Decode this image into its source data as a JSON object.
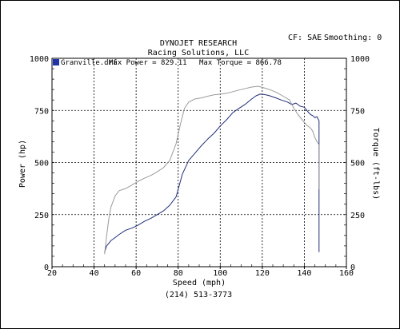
{
  "header": {
    "title": "DYNOJET RESEARCH",
    "subtitle": "Racing Solutions, LLC",
    "cf_label": "CF: SAE",
    "smoothing_label": "Smoothing: 0",
    "phone": "(214) 513-3773"
  },
  "legend": {
    "file": "Granville.drf",
    "max_power_label": "Max Power = 829.11",
    "max_torque_label": "Max Torque = 866.78",
    "swatch_color": "#2233aa"
  },
  "chart_data": {
    "type": "line",
    "xlabel": "Speed (mph)",
    "ylabel_left": "Power (hp)",
    "ylabel_right": "Torque (ft-lbs)",
    "xlim": [
      20,
      160
    ],
    "ylim": [
      0,
      1000
    ],
    "x_ticks": [
      "20",
      "40",
      "60",
      "80",
      "100",
      "120",
      "140",
      "160"
    ],
    "y_ticks_left": [
      "0",
      "250",
      "500",
      "750",
      "1000"
    ],
    "y_ticks_right": [
      "0",
      "250",
      "500",
      "750",
      "1000"
    ],
    "grid": true,
    "series": [
      {
        "name": "Max Power",
        "color": "#1f2c7a",
        "x": [
          45,
          46,
          48,
          50,
          52,
          55,
          58,
          61,
          64,
          67,
          70,
          73,
          76,
          79,
          82,
          85,
          88,
          91,
          94,
          97,
          100,
          103,
          106,
          109,
          112,
          115,
          117,
          119,
          121,
          123,
          126,
          129,
          132,
          134,
          136,
          138,
          140,
          142,
          143,
          144,
          145,
          146,
          147,
          147
        ],
        "y": [
          70,
          100,
          125,
          140,
          155,
          175,
          185,
          200,
          218,
          232,
          250,
          268,
          295,
          335,
          445,
          510,
          545,
          580,
          612,
          640,
          675,
          705,
          740,
          760,
          780,
          805,
          820,
          828,
          826,
          822,
          812,
          800,
          790,
          778,
          785,
          770,
          765,
          740,
          730,
          725,
          715,
          720,
          700,
          70
        ]
      },
      {
        "name": "Max Torque",
        "color": "#9a9a9a",
        "x": [
          45,
          46,
          47,
          48,
          50,
          52,
          55,
          58,
          61,
          64,
          67,
          70,
          73,
          76,
          79,
          81,
          83,
          85,
          88,
          91,
          94,
          97,
          100,
          103,
          106,
          109,
          112,
          115,
          118,
          121,
          124,
          127,
          130,
          133,
          135,
          137,
          139,
          141,
          143,
          144,
          145,
          146,
          147,
          147
        ],
        "y": [
          60,
          150,
          230,
          285,
          340,
          365,
          375,
          392,
          410,
          425,
          438,
          455,
          475,
          510,
          590,
          680,
          760,
          790,
          805,
          810,
          818,
          825,
          828,
          832,
          840,
          848,
          855,
          862,
          866,
          858,
          848,
          835,
          818,
          800,
          760,
          730,
          705,
          680,
          665,
          650,
          620,
          600,
          585,
          370
        ]
      }
    ]
  }
}
